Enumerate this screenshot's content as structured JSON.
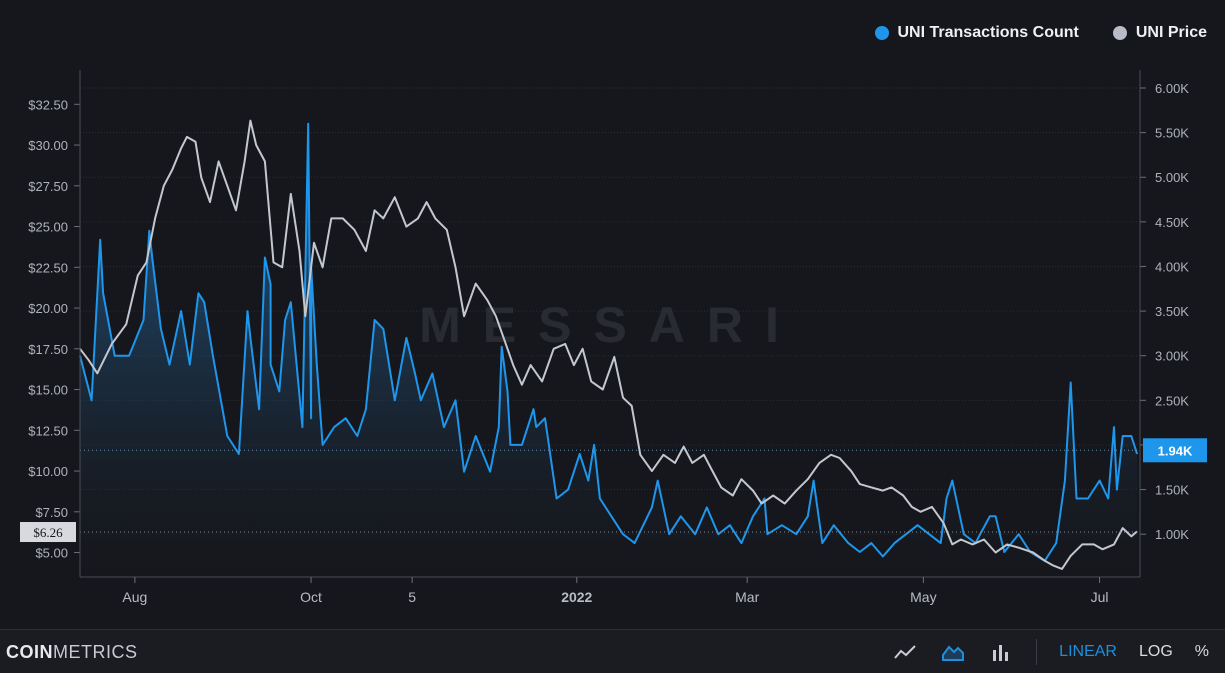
{
  "legend": {
    "series_a": {
      "label": "UNI Transactions Count",
      "color": "#1e96eb"
    },
    "series_b": {
      "label": "UNI Price",
      "color": "#b8bcc6"
    }
  },
  "watermark": "MESSARI",
  "footer": {
    "brand_bold": "COIN",
    "brand_light": "METRICS",
    "tools": [
      "line-chart-icon",
      "area-chart-icon",
      "bar-chart-icon"
    ],
    "scale_linear": "LINEAR",
    "scale_log": "LOG",
    "scale_percent": "%"
  },
  "chart_data": {
    "type": "line",
    "x_tick_labels": [
      "Aug",
      "Oct",
      "5",
      "2022",
      "Mar",
      "May",
      "Jul"
    ],
    "x_tick_dates": [
      "2021-08-01",
      "2021-10-01",
      "2021-11-05",
      "2022-01-01",
      "2022-03-01",
      "2022-05-01",
      "2022-07-01"
    ],
    "x_range": [
      "2021-07-13",
      "2022-07-15"
    ],
    "left_axis": {
      "ticks": [
        "$5.00",
        "$7.50",
        "$10.00",
        "$12.50",
        "$15.00",
        "$17.50",
        "$20.00",
        "$22.50",
        "$25.00",
        "$27.50",
        "$30.00",
        "$32.50"
      ],
      "tick_values": [
        5,
        7.5,
        10,
        12.5,
        15,
        17.5,
        20,
        22.5,
        25,
        27.5,
        30,
        32.5
      ],
      "range": [
        3.5,
        33.5
      ]
    },
    "right_axis": {
      "ticks": [
        "1.00K",
        "1.50K",
        "2.00K",
        "2.50K",
        "3.00K",
        "3.50K",
        "4.00K",
        "4.50K",
        "5.00K",
        "5.50K",
        "6.00K"
      ],
      "tick_values": [
        1000,
        1500,
        2000,
        2500,
        3000,
        3500,
        4000,
        4500,
        5000,
        5500,
        6000
      ],
      "range": [
        520,
        6000
      ]
    },
    "current_labels": {
      "price": {
        "text": "$6.26",
        "value": 6.26
      },
      "tx": {
        "text": "1.94K",
        "value": 1940
      }
    },
    "grid": true,
    "series": [
      {
        "name": "UNI Transactions Count",
        "axis": "right",
        "color": "#1e96eb",
        "style": "area",
        "points": [
          [
            "2021-07-13",
            3.0
          ],
          [
            "2021-07-17",
            2.5
          ],
          [
            "2021-07-21",
            3.7
          ],
          [
            "2021-07-25",
            3.0
          ],
          [
            "2021-07-30",
            3.0
          ],
          [
            "2021-08-04",
            3.4
          ],
          [
            "2021-08-07",
            4.1
          ],
          [
            "2021-08-10",
            3.3
          ],
          [
            "2021-08-13",
            2.9
          ],
          [
            "2021-08-17",
            3.5
          ],
          [
            "2021-08-20",
            2.9
          ],
          [
            "2021-08-25",
            3.6
          ],
          [
            "2021-08-28",
            3.0
          ],
          [
            "2021-09-02",
            2.1
          ],
          [
            "2021-09-06",
            1.9
          ],
          [
            "2021-09-10",
            3.2
          ],
          [
            "2021-09-13",
            2.4
          ],
          [
            "2021-09-17",
            3.8
          ],
          [
            "2021-09-20",
            2.6
          ],
          [
            "2021-09-24",
            3.6
          ],
          [
            "2021-09-28",
            2.2
          ],
          [
            "2021-10-01",
            2.3
          ],
          [
            "2021-10-03",
            2.9
          ],
          [
            "2021-10-05",
            2.0
          ],
          [
            "2021-10-09",
            2.2
          ],
          [
            "2021-10-13",
            2.3
          ],
          [
            "2021-10-17",
            2.1
          ],
          [
            "2021-10-20",
            2.4
          ],
          [
            "2021-10-26",
            3.3
          ],
          [
            "2021-10-30",
            2.5
          ],
          [
            "2021-11-03",
            3.2
          ],
          [
            "2021-11-08",
            2.5
          ],
          [
            "2021-11-12",
            2.8
          ],
          [
            "2021-11-16",
            2.2
          ],
          [
            "2021-11-20",
            2.5
          ],
          [
            "2021-11-23",
            1.7
          ],
          [
            "2021-11-27",
            2.1
          ],
          [
            "2021-12-02",
            1.7
          ],
          [
            "2021-12-05",
            2.2
          ],
          [
            "2021-12-09",
            2.0
          ],
          [
            "2021-12-13",
            2.0
          ],
          [
            "2021-12-17",
            2.4
          ],
          [
            "2021-12-21",
            2.3
          ],
          [
            "2021-12-25",
            1.4
          ],
          [
            "2021-12-29",
            1.5
          ],
          [
            "2022-01-02",
            1.9
          ],
          [
            "2022-01-05",
            1.6
          ],
          [
            "2022-01-09",
            1.4
          ],
          [
            "2022-01-13",
            1.2
          ],
          [
            "2022-01-17",
            1.0
          ],
          [
            "2022-01-21",
            0.9
          ],
          [
            "2022-01-27",
            1.3
          ],
          [
            "2022-02-02",
            1.0
          ],
          [
            "2022-02-06",
            1.2
          ],
          [
            "2022-02-11",
            1.0
          ],
          [
            "2022-02-15",
            1.3
          ],
          [
            "2022-02-19",
            1.0
          ],
          [
            "2022-02-23",
            1.1
          ],
          [
            "2022-02-27",
            0.9
          ],
          [
            "2022-03-03",
            1.2
          ],
          [
            "2022-03-08",
            1.0
          ],
          [
            "2022-03-13",
            1.1
          ],
          [
            "2022-03-18",
            1.0
          ],
          [
            "2022-03-22",
            1.2
          ],
          [
            "2022-03-27",
            0.9
          ],
          [
            "2022-03-31",
            1.1
          ],
          [
            "2022-04-05",
            0.9
          ],
          [
            "2022-04-09",
            0.8
          ],
          [
            "2022-04-13",
            0.9
          ],
          [
            "2022-04-17",
            0.75
          ],
          [
            "2022-04-21",
            0.9
          ],
          [
            "2022-04-25",
            1.0
          ],
          [
            "2022-04-29",
            1.1
          ],
          [
            "2022-05-03",
            1.0
          ],
          [
            "2022-05-07",
            0.9
          ],
          [
            "2022-05-11",
            1.6
          ],
          [
            "2022-05-15",
            1.0
          ],
          [
            "2022-05-19",
            0.9
          ],
          [
            "2022-05-24",
            1.2
          ],
          [
            "2022-05-29",
            0.8
          ],
          [
            "2022-06-03",
            1.0
          ],
          [
            "2022-06-07",
            0.8
          ],
          [
            "2022-06-12",
            0.7
          ],
          [
            "2022-06-16",
            0.9
          ],
          [
            "2022-06-19",
            1.6
          ],
          [
            "2022-06-21",
            2.7
          ],
          [
            "2022-06-23",
            1.4
          ],
          [
            "2022-06-27",
            1.4
          ],
          [
            "2022-07-01",
            1.6
          ],
          [
            "2022-07-04",
            1.4
          ],
          [
            "2022-07-06",
            2.2
          ],
          [
            "2022-07-07",
            1.5
          ],
          [
            "2022-07-09",
            2.1
          ],
          [
            "2022-07-12",
            2.1
          ],
          [
            "2022-07-14",
            1.9
          ]
        ],
        "spikes": [
          [
            "2021-07-20",
            4.3
          ],
          [
            "2021-08-06",
            4.4
          ],
          [
            "2021-08-23",
            3.7
          ],
          [
            "2021-09-09",
            3.5
          ],
          [
            "2021-09-15",
            4.1
          ],
          [
            "2021-09-17",
            2.9
          ],
          [
            "2021-09-22",
            3.4
          ],
          [
            "2021-09-30",
            5.6
          ],
          [
            "2021-10-01",
            4.0
          ],
          [
            "2021-10-23",
            3.4
          ],
          [
            "2021-11-06",
            2.8
          ],
          [
            "2021-12-06",
            3.1
          ],
          [
            "2021-12-08",
            2.6
          ],
          [
            "2021-12-18",
            2.2
          ],
          [
            "2022-01-07",
            2.0
          ],
          [
            "2022-01-29",
            1.6
          ],
          [
            "2022-03-07",
            1.4
          ],
          [
            "2022-03-24",
            1.6
          ],
          [
            "2022-05-09",
            1.4
          ],
          [
            "2022-05-26",
            1.2
          ],
          [
            "2022-06-21",
            2.7
          ],
          [
            "2022-07-06",
            2.2
          ]
        ]
      },
      {
        "name": "UNI Price",
        "axis": "left",
        "color": "#c3c7cf",
        "style": "line",
        "points": [
          [
            "2021-07-13",
            17.5
          ],
          [
            "2021-07-16",
            16.8
          ],
          [
            "2021-07-19",
            16.0
          ],
          [
            "2021-07-24",
            17.8
          ],
          [
            "2021-07-29",
            19.0
          ],
          [
            "2021-08-02",
            22.0
          ],
          [
            "2021-08-05",
            22.8
          ],
          [
            "2021-08-08",
            25.5
          ],
          [
            "2021-08-11",
            27.5
          ],
          [
            "2021-08-14",
            28.5
          ],
          [
            "2021-08-17",
            29.8
          ],
          [
            "2021-08-19",
            30.5
          ],
          [
            "2021-08-22",
            30.2
          ],
          [
            "2021-08-24",
            28.0
          ],
          [
            "2021-08-27",
            26.5
          ],
          [
            "2021-08-30",
            29.0
          ],
          [
            "2021-09-02",
            27.5
          ],
          [
            "2021-09-05",
            26.0
          ],
          [
            "2021-09-08",
            29.0
          ],
          [
            "2021-09-10",
            31.5
          ],
          [
            "2021-09-12",
            30.0
          ],
          [
            "2021-09-15",
            29.0
          ],
          [
            "2021-09-18",
            22.8
          ],
          [
            "2021-09-21",
            22.5
          ],
          [
            "2021-09-24",
            27.0
          ],
          [
            "2021-09-27",
            23.5
          ],
          [
            "2021-09-29",
            19.5
          ],
          [
            "2021-10-02",
            24.0
          ],
          [
            "2021-10-05",
            22.5
          ],
          [
            "2021-10-08",
            25.5
          ],
          [
            "2021-10-12",
            25.5
          ],
          [
            "2021-10-16",
            24.8
          ],
          [
            "2021-10-20",
            23.5
          ],
          [
            "2021-10-23",
            26.0
          ],
          [
            "2021-10-26",
            25.5
          ],
          [
            "2021-10-30",
            26.8
          ],
          [
            "2021-11-03",
            25.0
          ],
          [
            "2021-11-07",
            25.5
          ],
          [
            "2021-11-10",
            26.5
          ],
          [
            "2021-11-13",
            25.5
          ],
          [
            "2021-11-17",
            24.8
          ],
          [
            "2021-11-20",
            22.5
          ],
          [
            "2021-11-23",
            19.5
          ],
          [
            "2021-11-27",
            21.5
          ],
          [
            "2021-12-01",
            20.5
          ],
          [
            "2021-12-04",
            19.5
          ],
          [
            "2021-12-07",
            18.0
          ],
          [
            "2021-12-10",
            16.5
          ],
          [
            "2021-12-13",
            15.3
          ],
          [
            "2021-12-16",
            16.5
          ],
          [
            "2021-12-20",
            15.5
          ],
          [
            "2021-12-24",
            17.5
          ],
          [
            "2021-12-28",
            17.8
          ],
          [
            "2021-12-31",
            16.5
          ],
          [
            "2022-01-03",
            17.5
          ],
          [
            "2022-01-06",
            15.5
          ],
          [
            "2022-01-10",
            15.0
          ],
          [
            "2022-01-14",
            17.0
          ],
          [
            "2022-01-17",
            14.5
          ],
          [
            "2022-01-20",
            14.0
          ],
          [
            "2022-01-23",
            11.0
          ],
          [
            "2022-01-27",
            10.0
          ],
          [
            "2022-01-31",
            11.0
          ],
          [
            "2022-02-04",
            10.5
          ],
          [
            "2022-02-07",
            11.5
          ],
          [
            "2022-02-10",
            10.5
          ],
          [
            "2022-02-14",
            11.0
          ],
          [
            "2022-02-17",
            10.0
          ],
          [
            "2022-02-20",
            9.0
          ],
          [
            "2022-02-24",
            8.5
          ],
          [
            "2022-02-27",
            9.5
          ],
          [
            "2022-03-03",
            8.8
          ],
          [
            "2022-03-06",
            8.0
          ],
          [
            "2022-03-10",
            8.5
          ],
          [
            "2022-03-14",
            8.0
          ],
          [
            "2022-03-18",
            8.8
          ],
          [
            "2022-03-22",
            9.5
          ],
          [
            "2022-03-26",
            10.5
          ],
          [
            "2022-03-30",
            11.0
          ],
          [
            "2022-04-02",
            10.8
          ],
          [
            "2022-04-06",
            10.0
          ],
          [
            "2022-04-09",
            9.2
          ],
          [
            "2022-04-13",
            9.0
          ],
          [
            "2022-04-17",
            8.8
          ],
          [
            "2022-04-20",
            9.0
          ],
          [
            "2022-04-24",
            8.5
          ],
          [
            "2022-04-27",
            7.8
          ],
          [
            "2022-04-30",
            7.5
          ],
          [
            "2022-05-04",
            7.8
          ],
          [
            "2022-05-08",
            6.8
          ],
          [
            "2022-05-11",
            5.5
          ],
          [
            "2022-05-14",
            5.8
          ],
          [
            "2022-05-18",
            5.5
          ],
          [
            "2022-05-22",
            5.8
          ],
          [
            "2022-05-26",
            5.0
          ],
          [
            "2022-05-30",
            5.5
          ],
          [
            "2022-06-03",
            5.3
          ],
          [
            "2022-06-08",
            5.0
          ],
          [
            "2022-06-12",
            4.5
          ],
          [
            "2022-06-15",
            4.2
          ],
          [
            "2022-06-18",
            4.0
          ],
          [
            "2022-06-21",
            4.8
          ],
          [
            "2022-06-25",
            5.5
          ],
          [
            "2022-06-29",
            5.5
          ],
          [
            "2022-07-02",
            5.2
          ],
          [
            "2022-07-06",
            5.5
          ],
          [
            "2022-07-09",
            6.5
          ],
          [
            "2022-07-12",
            6.0
          ],
          [
            "2022-07-14",
            6.3
          ]
        ]
      }
    ]
  }
}
